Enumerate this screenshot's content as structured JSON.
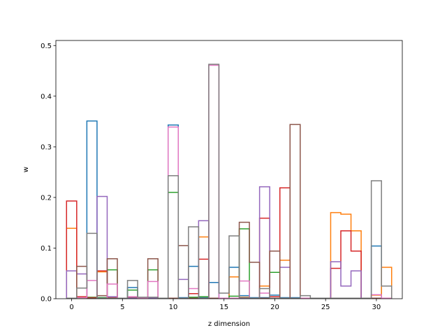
{
  "chart_data": {
    "type": "step",
    "title": "",
    "xlabel": "z dimension",
    "ylabel": "w",
    "xlim": [
      -1.55,
      32.55
    ],
    "ylim": [
      0,
      0.51
    ],
    "xticks": [
      0,
      5,
      10,
      15,
      20,
      25,
      30
    ],
    "xtick_labels": [
      "0",
      "5",
      "10",
      "15",
      "20",
      "25",
      "30"
    ],
    "yticks": [
      0.0,
      0.1,
      0.2,
      0.3,
      0.4,
      0.5
    ],
    "ytick_labels": [
      "0.0",
      "0.1",
      "0.2",
      "0.3",
      "0.4",
      "0.5"
    ],
    "grid": false,
    "x": [
      0,
      1,
      2,
      3,
      4,
      5,
      6,
      7,
      8,
      9,
      10,
      11,
      12,
      13,
      14,
      15,
      16,
      17,
      18,
      19,
      20,
      21,
      22,
      23,
      24,
      25,
      26,
      27,
      28,
      29,
      30,
      31
    ],
    "series": [
      {
        "color": "#1f77b4",
        "values": [
          0.001,
          0.002,
          0.351,
          0.002,
          0.002,
          0.001,
          0.022,
          0.001,
          0.002,
          0.001,
          0.343,
          0.002,
          0.064,
          0.002,
          0.032,
          0.001,
          0.062,
          0.006,
          0.002,
          0.002,
          0.007,
          0.002,
          0.002,
          0.001,
          0.001,
          0.001,
          0.001,
          0.001,
          0.001,
          0.001,
          0.104,
          0.001
        ]
      },
      {
        "color": "#ff7f0e",
        "values": [
          0.139,
          0.002,
          0.002,
          0.053,
          0.002,
          0.001,
          0.001,
          0.001,
          0.001,
          0.001,
          0.001,
          0.001,
          0.002,
          0.122,
          0.001,
          0.001,
          0.043,
          0.003,
          0.001,
          0.025,
          0.001,
          0.076,
          0.001,
          0.001,
          0.001,
          0.001,
          0.17,
          0.167,
          0.134,
          0.001,
          0.007,
          0.062
        ]
      },
      {
        "color": "#2ca02c",
        "values": [
          0.001,
          0.002,
          0.003,
          0.002,
          0.057,
          0.001,
          0.017,
          0.001,
          0.057,
          0.001,
          0.21,
          0.001,
          0.003,
          0.004,
          0.001,
          0.001,
          0.005,
          0.138,
          0.001,
          0.001,
          0.052,
          0.001,
          0.001,
          0.001,
          0.001,
          0.001,
          0.001,
          0.001,
          0.001,
          0.001,
          0.001,
          0.001
        ]
      },
      {
        "color": "#d62728",
        "values": [
          0.193,
          0.004,
          0.002,
          0.055,
          0.002,
          0.001,
          0.001,
          0.001,
          0.001,
          0.001,
          0.001,
          0.001,
          0.01,
          0.078,
          0.001,
          0.001,
          0.001,
          0.001,
          0.001,
          0.159,
          0.004,
          0.219,
          0.001,
          0.001,
          0.001,
          0.001,
          0.06,
          0.134,
          0.094,
          0.001,
          0.001,
          0.001
        ]
      },
      {
        "color": "#9467bd",
        "values": [
          0.055,
          0.049,
          0.001,
          0.202,
          0.004,
          0.001,
          0.001,
          0.001,
          0.001,
          0.001,
          0.001,
          0.038,
          0.001,
          0.154,
          0.001,
          0.001,
          0.001,
          0.001,
          0.001,
          0.221,
          0.001,
          0.062,
          0.001,
          0.001,
          0.001,
          0.001,
          0.073,
          0.025,
          0.055,
          0.001,
          0.001,
          0.001
        ]
      },
      {
        "color": "#8c564b",
        "values": [
          0.001,
          0.064,
          0.001,
          0.006,
          0.079,
          0.001,
          0.003,
          0.001,
          0.079,
          0.001,
          0.001,
          0.105,
          0.001,
          0.001,
          0.001,
          0.001,
          0.001,
          0.151,
          0.072,
          0.001,
          0.094,
          0.001,
          0.344,
          0.001,
          0.001,
          0.001,
          0.001,
          0.001,
          0.001,
          0.001,
          0.001,
          0.001
        ]
      },
      {
        "color": "#e377c2",
        "values": [
          0.001,
          0.002,
          0.036,
          0.001,
          0.029,
          0.001,
          0.004,
          0.001,
          0.034,
          0.001,
          0.339,
          0.001,
          0.02,
          0.001,
          0.461,
          0.001,
          0.001,
          0.035,
          0.001,
          0.011,
          0.001,
          0.001,
          0.001,
          0.001,
          0.001,
          0.001,
          0.001,
          0.001,
          0.001,
          0.001,
          0.008,
          0.001
        ]
      },
      {
        "color": "#7f7f7f",
        "values": [
          0.001,
          0.021,
          0.129,
          0.001,
          0.001,
          0.001,
          0.036,
          0.003,
          0.003,
          0.001,
          0.243,
          0.001,
          0.142,
          0.001,
          0.463,
          0.011,
          0.124,
          0.002,
          0.001,
          0.02,
          0.001,
          0.001,
          0.001,
          0.006,
          0.001,
          0.001,
          0.001,
          0.001,
          0.001,
          0.001,
          0.233,
          0.025
        ]
      }
    ]
  }
}
